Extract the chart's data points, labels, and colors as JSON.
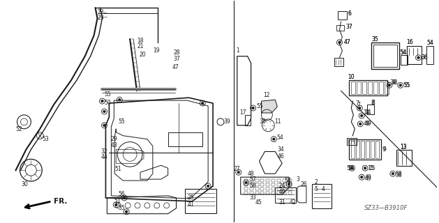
{
  "bg_color": "#ffffff",
  "diagram_code": "SZ33—B3910F",
  "lc": "#1a1a1a",
  "fs": 5.5,
  "fig_w": 6.29,
  "fig_h": 3.2,
  "dpi": 100
}
